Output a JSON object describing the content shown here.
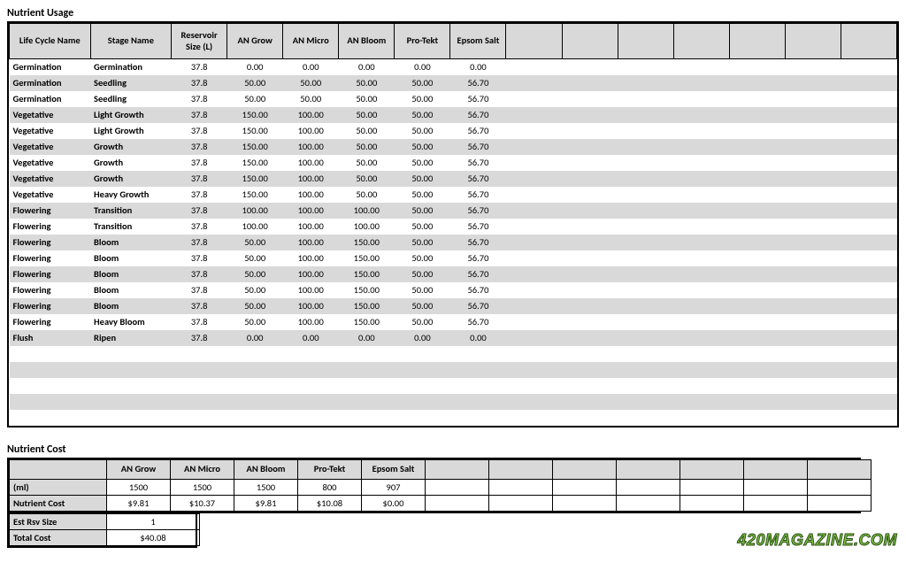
{
  "usage": {
    "title": "Nutrient Usage",
    "columns": [
      "Life Cycle Name",
      "Stage Name",
      "Reservoir Size (L)",
      "AN Grow",
      "AN Micro",
      "AN Bloom",
      "Pro-Tekt",
      "Epsom Salt",
      "",
      "",
      "",
      "",
      "",
      "",
      ""
    ],
    "col_widths": [
      "90px",
      "90px",
      "62px",
      "62px",
      "62px",
      "62px",
      "62px",
      "62px",
      "62px",
      "62px",
      "62px",
      "62px",
      "62px",
      "62px",
      "62px"
    ],
    "header_bg": "#d9d9d9",
    "stripe_bg": "#d9d9d9",
    "rows": [
      [
        "Germination",
        "Germination",
        "37.8",
        "0.00",
        "0.00",
        "0.00",
        "0.00",
        "0.00",
        "",
        "",
        "",
        "",
        "",
        "",
        ""
      ],
      [
        "Germination",
        "Seedling",
        "37.8",
        "50.00",
        "50.00",
        "50.00",
        "50.00",
        "56.70",
        "",
        "",
        "",
        "",
        "",
        "",
        ""
      ],
      [
        "Germination",
        "Seedling",
        "37.8",
        "50.00",
        "50.00",
        "50.00",
        "50.00",
        "56.70",
        "",
        "",
        "",
        "",
        "",
        "",
        ""
      ],
      [
        "Vegetative",
        "Light Growth",
        "37.8",
        "150.00",
        "100.00",
        "50.00",
        "50.00",
        "56.70",
        "",
        "",
        "",
        "",
        "",
        "",
        ""
      ],
      [
        "Vegetative",
        "Light Growth",
        "37.8",
        "150.00",
        "100.00",
        "50.00",
        "50.00",
        "56.70",
        "",
        "",
        "",
        "",
        "",
        "",
        ""
      ],
      [
        "Vegetative",
        "Growth",
        "37.8",
        "150.00",
        "100.00",
        "50.00",
        "50.00",
        "56.70",
        "",
        "",
        "",
        "",
        "",
        "",
        ""
      ],
      [
        "Vegetative",
        "Growth",
        "37.8",
        "150.00",
        "100.00",
        "50.00",
        "50.00",
        "56.70",
        "",
        "",
        "",
        "",
        "",
        "",
        ""
      ],
      [
        "Vegetative",
        "Growth",
        "37.8",
        "150.00",
        "100.00",
        "50.00",
        "50.00",
        "56.70",
        "",
        "",
        "",
        "",
        "",
        "",
        ""
      ],
      [
        "Vegetative",
        "Heavy Growth",
        "37.8",
        "150.00",
        "100.00",
        "50.00",
        "50.00",
        "56.70",
        "",
        "",
        "",
        "",
        "",
        "",
        ""
      ],
      [
        "Flowering",
        "Transition",
        "37.8",
        "100.00",
        "100.00",
        "100.00",
        "50.00",
        "56.70",
        "",
        "",
        "",
        "",
        "",
        "",
        ""
      ],
      [
        "Flowering",
        "Transition",
        "37.8",
        "100.00",
        "100.00",
        "100.00",
        "50.00",
        "56.70",
        "",
        "",
        "",
        "",
        "",
        "",
        ""
      ],
      [
        "Flowering",
        "Bloom",
        "37.8",
        "50.00",
        "100.00",
        "150.00",
        "50.00",
        "56.70",
        "",
        "",
        "",
        "",
        "",
        "",
        ""
      ],
      [
        "Flowering",
        "Bloom",
        "37.8",
        "50.00",
        "100.00",
        "150.00",
        "50.00",
        "56.70",
        "",
        "",
        "",
        "",
        "",
        "",
        ""
      ],
      [
        "Flowering",
        "Bloom",
        "37.8",
        "50.00",
        "100.00",
        "150.00",
        "50.00",
        "56.70",
        "",
        "",
        "",
        "",
        "",
        "",
        ""
      ],
      [
        "Flowering",
        "Bloom",
        "37.8",
        "50.00",
        "100.00",
        "150.00",
        "50.00",
        "56.70",
        "",
        "",
        "",
        "",
        "",
        "",
        ""
      ],
      [
        "Flowering",
        "Bloom",
        "37.8",
        "50.00",
        "100.00",
        "150.00",
        "50.00",
        "56.70",
        "",
        "",
        "",
        "",
        "",
        "",
        ""
      ],
      [
        "Flowering",
        "Heavy Bloom",
        "37.8",
        "50.00",
        "100.00",
        "150.00",
        "50.00",
        "56.70",
        "",
        "",
        "",
        "",
        "",
        "",
        ""
      ],
      [
        "Flush",
        "Ripen",
        "37.8",
        "0.00",
        "0.00",
        "0.00",
        "0.00",
        "0.00",
        "",
        "",
        "",
        "",
        "",
        "",
        ""
      ],
      [
        "",
        "",
        "",
        "",
        "",
        "",
        "",
        "",
        "",
        "",
        "",
        "",
        "",
        "",
        ""
      ],
      [
        "",
        "",
        "",
        "",
        "",
        "",
        "",
        "",
        "",
        "",
        "",
        "",
        "",
        "",
        ""
      ],
      [
        "",
        "",
        "",
        "",
        "",
        "",
        "",
        "",
        "",
        "",
        "",
        "",
        "",
        "",
        ""
      ],
      [
        "",
        "",
        "",
        "",
        "",
        "",
        "",
        "",
        "",
        "",
        "",
        "",
        "",
        "",
        ""
      ],
      [
        "",
        "",
        "",
        "",
        "",
        "",
        "",
        "",
        "",
        "",
        "",
        "",
        "",
        "",
        ""
      ]
    ]
  },
  "cost": {
    "title": "Nutrient Cost",
    "columns": [
      "",
      "AN Grow",
      "AN Micro",
      "AN Bloom",
      "Pro-Tekt",
      "Epsom Salt",
      "",
      "",
      "",
      "",
      "",
      "",
      ""
    ],
    "col_widths": [
      "110px",
      "72px",
      "72px",
      "72px",
      "72px",
      "72px",
      "72px",
      "72px",
      "72px",
      "72px",
      "72px",
      "72px",
      "72px"
    ],
    "rows": [
      [
        "(ml)",
        "1500",
        "1500",
        "1500",
        "800",
        "907",
        "",
        "",
        "",
        "",
        "",
        "",
        ""
      ],
      [
        "Nutrient Cost",
        "$9.81",
        "$10.37",
        "$9.81",
        "$10.08",
        "$0.00",
        "",
        "",
        "",
        "",
        "",
        "",
        ""
      ]
    ],
    "summary": [
      [
        "Est Rsv Size",
        "1"
      ],
      [
        "Total Cost",
        "$40.08"
      ]
    ]
  },
  "watermark": "420MAGAZINE.COM"
}
